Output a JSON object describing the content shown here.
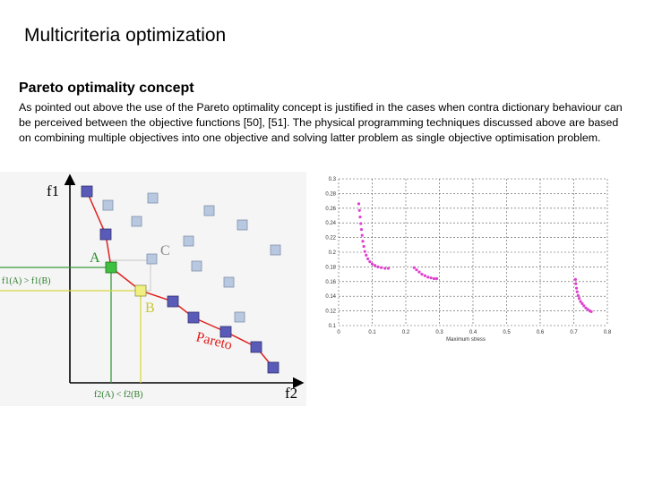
{
  "slide": {
    "title": "Multicriteria optimization",
    "subtitle": "Pareto optimality concept",
    "body": "As pointed out above the use of the Pareto optimality concept is justified in the cases when contra dictionary behaviour can be perceived between the objective functions [50], [51]. The physical programming techniques discussed above are based on combining multiple objectives into one objective and solving latter problem as single objective optimisation problem."
  },
  "diagram": {
    "y_axis_label": "f1",
    "x_axis_label": "f2",
    "label_a": "A",
    "label_b": "B",
    "label_c": "C",
    "label_pareto": "Pareto",
    "f1_compare": "f1(A) > f1(B)",
    "f2_compare": "f2(A) < f2(B)",
    "colors": {
      "pareto_front": "#e02020",
      "point_a": "#40c040",
      "point_b": "#f0f080",
      "pareto_point": "#5a5ab8",
      "other_point": "#b8c8e0",
      "green_guide": "#3a9a3a",
      "yellow_guide": "#d8d840"
    }
  },
  "chart_data": {
    "type": "scatter",
    "title": "",
    "xlabel": "Maximum stress",
    "ylabel": "",
    "xlim": [
      0,
      0.8
    ],
    "ylim": [
      0.1,
      0.3
    ],
    "x_ticks": [
      "0",
      "0.1",
      "0.2",
      "0.3",
      "0.4",
      "0.5",
      "0.6",
      "0.7",
      "0.8"
    ],
    "y_ticks": [
      "0.1",
      "0.12",
      "0.14",
      "0.16",
      "0.18",
      "0.2",
      "0.22",
      "0.24",
      "0.26",
      "0.28",
      "0.3"
    ],
    "grid": true,
    "marker_color": "#e040d0",
    "series": [
      {
        "x": [
          0.06,
          0.062,
          0.064,
          0.066,
          0.068,
          0.07,
          0.072,
          0.075,
          0.078,
          0.082,
          0.087,
          0.093,
          0.1,
          0.108,
          0.117,
          0.127,
          0.138,
          0.148
        ],
        "y": [
          0.266,
          0.257,
          0.248,
          0.239,
          0.231,
          0.223,
          0.215,
          0.208,
          0.201,
          0.196,
          0.191,
          0.187,
          0.184,
          0.182,
          0.18,
          0.179,
          0.178,
          0.178
        ]
      },
      {
        "x": [
          0.225,
          0.232,
          0.24,
          0.248,
          0.257,
          0.266,
          0.275,
          0.284,
          0.292
        ],
        "y": [
          0.179,
          0.176,
          0.173,
          0.17,
          0.168,
          0.166,
          0.165,
          0.164,
          0.164
        ]
      },
      {
        "x": [
          0.705,
          0.706,
          0.708,
          0.71,
          0.713,
          0.716,
          0.72,
          0.725,
          0.73,
          0.736,
          0.742,
          0.748,
          0.752
        ],
        "y": [
          0.163,
          0.157,
          0.151,
          0.146,
          0.141,
          0.137,
          0.133,
          0.13,
          0.127,
          0.124,
          0.122,
          0.12,
          0.119
        ]
      }
    ]
  }
}
